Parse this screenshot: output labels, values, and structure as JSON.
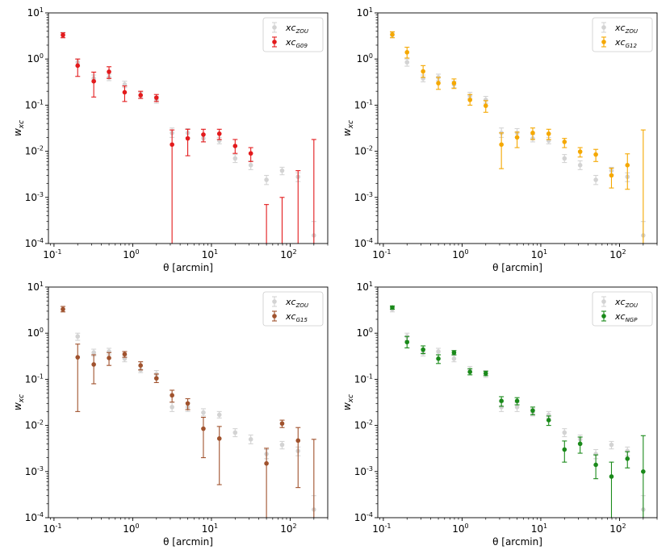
{
  "chart_data": [
    {
      "type": "scatter",
      "panel": "top-left",
      "xlabel": "θ [arcmin]",
      "ylabel": "w_xc",
      "xscale": "log",
      "yscale": "log",
      "xlim": [
        0.085,
        300
      ],
      "ylim": [
        0.0001,
        10
      ],
      "legend_position": "top-right",
      "series": [
        {
          "name": "xc_ZOU",
          "base": "xc",
          "sub": "ZOU",
          "color": "#d3d3d3",
          "points": [
            [
              0.13,
              3.3,
              3.8,
              2.9
            ],
            [
              0.2,
              0.85,
              1.0,
              0.7
            ],
            [
              0.32,
              0.38,
              0.45,
              0.32
            ],
            [
              0.5,
              0.4,
              0.47,
              0.34
            ],
            [
              0.79,
              0.28,
              0.33,
              0.24
            ],
            [
              1.26,
              0.16,
              0.19,
              0.14
            ],
            [
              2.0,
              0.13,
              0.155,
              0.11
            ],
            [
              3.16,
              0.025,
              0.032,
              0.02
            ],
            [
              5.0,
              0.025,
              0.031,
              0.02
            ],
            [
              7.9,
              0.019,
              0.023,
              0.016
            ],
            [
              12.6,
              0.017,
              0.02,
              0.0145
            ],
            [
              20,
              0.007,
              0.0085,
              0.0057
            ],
            [
              31.6,
              0.005,
              0.0062,
              0.004
            ],
            [
              50,
              0.0024,
              0.003,
              0.0019
            ],
            [
              79,
              0.0038,
              0.0045,
              0.0031
            ],
            [
              126,
              0.0028,
              0.0034,
              0.0022
            ],
            [
              200,
              0.00015,
              0.0003,
              0.0001
            ]
          ]
        },
        {
          "name": "xc_G09",
          "base": "xc",
          "sub": "G09",
          "color": "#e31a1c",
          "points": [
            [
              0.13,
              3.3,
              3.7,
              2.9
            ],
            [
              0.2,
              0.72,
              1.0,
              0.42
            ],
            [
              0.32,
              0.33,
              0.52,
              0.15
            ],
            [
              0.5,
              0.53,
              0.68,
              0.38
            ],
            [
              0.79,
              0.19,
              0.26,
              0.12
            ],
            [
              1.26,
              0.165,
              0.2,
              0.14
            ],
            [
              2.0,
              0.145,
              0.17,
              0.12
            ],
            [
              3.16,
              0.014,
              0.029,
              0.0001
            ],
            [
              5.0,
              0.019,
              0.03,
              0.008
            ],
            [
              7.9,
              0.023,
              0.03,
              0.016
            ],
            [
              12.6,
              0.024,
              0.03,
              0.018
            ],
            [
              20,
              0.013,
              0.018,
              0.009
            ],
            [
              31.6,
              0.009,
              0.012,
              0.006
            ],
            [
              50,
              null,
              0.0007,
              0.0001
            ],
            [
              79,
              null,
              0.001,
              0.0001
            ],
            [
              126,
              null,
              0.0038,
              0.0001
            ],
            [
              200,
              null,
              0.018,
              0.0001
            ]
          ]
        }
      ]
    },
    {
      "type": "scatter",
      "panel": "top-right",
      "xlabel": "θ [arcmin]",
      "ylabel": "w_xc",
      "xscale": "log",
      "yscale": "log",
      "xlim": [
        0.085,
        300
      ],
      "ylim": [
        0.0001,
        10
      ],
      "legend_position": "top-right",
      "series": [
        {
          "name": "xc_ZOU",
          "base": "xc",
          "sub": "ZOU",
          "color": "#d3d3d3",
          "points": [
            [
              0.13,
              3.3,
              3.8,
              2.9
            ],
            [
              0.2,
              0.85,
              1.0,
              0.7
            ],
            [
              0.32,
              0.38,
              0.45,
              0.32
            ],
            [
              0.5,
              0.4,
              0.47,
              0.34
            ],
            [
              0.79,
              0.28,
              0.33,
              0.24
            ],
            [
              1.26,
              0.16,
              0.19,
              0.14
            ],
            [
              2.0,
              0.13,
              0.155,
              0.11
            ],
            [
              3.16,
              0.025,
              0.032,
              0.02
            ],
            [
              5.0,
              0.025,
              0.031,
              0.02
            ],
            [
              7.9,
              0.019,
              0.023,
              0.016
            ],
            [
              12.6,
              0.017,
              0.02,
              0.0145
            ],
            [
              20,
              0.007,
              0.0085,
              0.0057
            ],
            [
              31.6,
              0.005,
              0.0062,
              0.004
            ],
            [
              50,
              0.0024,
              0.003,
              0.0019
            ],
            [
              79,
              0.0038,
              0.0045,
              0.0031
            ],
            [
              126,
              0.0028,
              0.0034,
              0.0022
            ],
            [
              200,
              0.00015,
              0.0003,
              0.0001
            ]
          ]
        },
        {
          "name": "xc_G12",
          "base": "xc",
          "sub": "G12",
          "color": "#f5a800",
          "points": [
            [
              0.13,
              3.4,
              3.9,
              2.9
            ],
            [
              0.2,
              1.4,
              1.8,
              1.05
            ],
            [
              0.32,
              0.54,
              0.72,
              0.4
            ],
            [
              0.5,
              0.3,
              0.4,
              0.22
            ],
            [
              0.79,
              0.3,
              0.37,
              0.23
            ],
            [
              1.26,
              0.13,
              0.17,
              0.1
            ],
            [
              2.0,
              0.097,
              0.125,
              0.07
            ],
            [
              3.16,
              0.014,
              0.025,
              0.0042
            ],
            [
              5.0,
              0.02,
              0.026,
              0.012
            ],
            [
              7.9,
              0.025,
              0.032,
              0.018
            ],
            [
              12.6,
              0.024,
              0.03,
              0.018
            ],
            [
              20,
              0.016,
              0.019,
              0.012
            ],
            [
              31.6,
              0.0098,
              0.012,
              0.0075
            ],
            [
              50,
              0.0085,
              0.011,
              0.006
            ],
            [
              79,
              0.003,
              0.0043,
              0.0016
            ],
            [
              126,
              0.005,
              0.0088,
              0.0015
            ],
            [
              200,
              null,
              0.029,
              0.0001
            ]
          ]
        }
      ]
    },
    {
      "type": "scatter",
      "panel": "bottom-left",
      "xlabel": "θ [arcmin]",
      "ylabel": "w_xc",
      "xscale": "log",
      "yscale": "log",
      "xlim": [
        0.085,
        300
      ],
      "ylim": [
        0.0001,
        10
      ],
      "legend_position": "top-right",
      "series": [
        {
          "name": "xc_ZOU",
          "base": "xc",
          "sub": "ZOU",
          "color": "#d3d3d3",
          "points": [
            [
              0.13,
              3.3,
              3.8,
              2.9
            ],
            [
              0.2,
              0.85,
              1.0,
              0.7
            ],
            [
              0.32,
              0.38,
              0.45,
              0.32
            ],
            [
              0.5,
              0.4,
              0.47,
              0.34
            ],
            [
              0.79,
              0.28,
              0.33,
              0.24
            ],
            [
              1.26,
              0.16,
              0.19,
              0.14
            ],
            [
              2.0,
              0.13,
              0.155,
              0.11
            ],
            [
              3.16,
              0.025,
              0.032,
              0.02
            ],
            [
              5.0,
              0.025,
              0.031,
              0.02
            ],
            [
              7.9,
              0.019,
              0.023,
              0.016
            ],
            [
              12.6,
              0.017,
              0.02,
              0.0145
            ],
            [
              20,
              0.007,
              0.0085,
              0.0057
            ],
            [
              31.6,
              0.005,
              0.0062,
              0.004
            ],
            [
              50,
              0.0024,
              0.003,
              0.0019
            ],
            [
              79,
              0.0038,
              0.0045,
              0.0031
            ],
            [
              126,
              0.0028,
              0.0034,
              0.0022
            ],
            [
              200,
              0.00015,
              0.0003,
              0.0001
            ]
          ]
        },
        {
          "name": "xc_G15",
          "base": "xc",
          "sub": "G15",
          "color": "#a0522d",
          "points": [
            [
              0.13,
              3.3,
              3.8,
              2.9
            ],
            [
              0.2,
              0.3,
              0.58,
              0.02
            ],
            [
              0.32,
              0.21,
              0.34,
              0.08
            ],
            [
              0.5,
              0.29,
              0.38,
              0.2
            ],
            [
              0.79,
              0.35,
              0.4,
              0.3
            ],
            [
              1.26,
              0.2,
              0.24,
              0.16
            ],
            [
              2.0,
              0.105,
              0.13,
              0.085
            ],
            [
              3.16,
              0.045,
              0.058,
              0.032
            ],
            [
              5.0,
              0.03,
              0.038,
              0.022
            ],
            [
              7.9,
              0.0085,
              0.015,
              0.002
            ],
            [
              12.6,
              0.0052,
              0.0095,
              0.00052
            ],
            [
              20,
              null,
              null,
              null
            ],
            [
              31.6,
              null,
              null,
              null
            ],
            [
              50,
              0.0015,
              0.0032,
              0.0001
            ],
            [
              79,
              0.011,
              0.013,
              0.009
            ],
            [
              126,
              0.0047,
              0.009,
              0.00045
            ],
            [
              200,
              null,
              0.005,
              0.0001
            ]
          ]
        }
      ]
    },
    {
      "type": "scatter",
      "panel": "bottom-right",
      "xlabel": "θ [arcmin]",
      "ylabel": "w_xc",
      "xscale": "log",
      "yscale": "log",
      "xlim": [
        0.085,
        300
      ],
      "ylim": [
        0.0001,
        10
      ],
      "legend_position": "top-right",
      "series": [
        {
          "name": "xc_ZOU",
          "base": "xc",
          "sub": "ZOU",
          "color": "#d3d3d3",
          "points": [
            [
              0.13,
              3.3,
              3.8,
              2.9
            ],
            [
              0.2,
              0.85,
              1.0,
              0.7
            ],
            [
              0.32,
              0.38,
              0.45,
              0.32
            ],
            [
              0.5,
              0.4,
              0.47,
              0.34
            ],
            [
              0.79,
              0.28,
              0.33,
              0.24
            ],
            [
              1.26,
              0.16,
              0.19,
              0.14
            ],
            [
              2.0,
              0.13,
              0.155,
              0.11
            ],
            [
              3.16,
              0.025,
              0.032,
              0.02
            ],
            [
              5.0,
              0.025,
              0.031,
              0.02
            ],
            [
              7.9,
              0.019,
              0.023,
              0.016
            ],
            [
              12.6,
              0.017,
              0.02,
              0.0145
            ],
            [
              20,
              0.007,
              0.0085,
              0.0057
            ],
            [
              31.6,
              0.005,
              0.0062,
              0.004
            ],
            [
              50,
              0.0024,
              0.003,
              0.0019
            ],
            [
              79,
              0.0038,
              0.0045,
              0.0031
            ],
            [
              126,
              0.0028,
              0.0034,
              0.0022
            ],
            [
              200,
              0.00015,
              0.0003,
              0.0001
            ]
          ]
        },
        {
          "name": "xc_NGP",
          "base": "xc",
          "sub": "NGP",
          "color": "#1a8a1a",
          "points": [
            [
              0.13,
              3.6,
              3.9,
              3.3
            ],
            [
              0.2,
              0.64,
              0.85,
              0.48
            ],
            [
              0.32,
              0.44,
              0.53,
              0.36
            ],
            [
              0.5,
              0.28,
              0.34,
              0.22
            ],
            [
              0.79,
              0.38,
              0.42,
              0.34
            ],
            [
              1.26,
              0.145,
              0.17,
              0.125
            ],
            [
              2.0,
              0.135,
              0.15,
              0.12
            ],
            [
              3.16,
              0.034,
              0.042,
              0.026
            ],
            [
              5.0,
              0.034,
              0.04,
              0.028
            ],
            [
              7.9,
              0.021,
              0.025,
              0.017
            ],
            [
              12.6,
              0.013,
              0.016,
              0.01
            ],
            [
              20,
              0.003,
              0.0046,
              0.0016
            ],
            [
              31.6,
              0.004,
              0.0056,
              0.0025
            ],
            [
              50,
              0.0014,
              0.0023,
              0.0007
            ],
            [
              79,
              0.00078,
              0.0016,
              0.0001
            ],
            [
              126,
              0.0019,
              0.0027,
              0.0012
            ],
            [
              200,
              0.001,
              0.006,
              0.0001
            ]
          ]
        }
      ]
    }
  ],
  "ticks": {
    "x": [
      {
        "v": 0.1,
        "e": "-1"
      },
      {
        "v": 1,
        "e": "0"
      },
      {
        "v": 10,
        "e": "1"
      },
      {
        "v": 100,
        "e": "2"
      }
    ],
    "y": [
      {
        "v": 0.0001,
        "e": "-4"
      },
      {
        "v": 0.001,
        "e": "-3"
      },
      {
        "v": 0.01,
        "e": "-2"
      },
      {
        "v": 0.1,
        "e": "-1"
      },
      {
        "v": 1,
        "e": "0"
      },
      {
        "v": 10,
        "e": "1"
      }
    ],
    "base": "10"
  }
}
